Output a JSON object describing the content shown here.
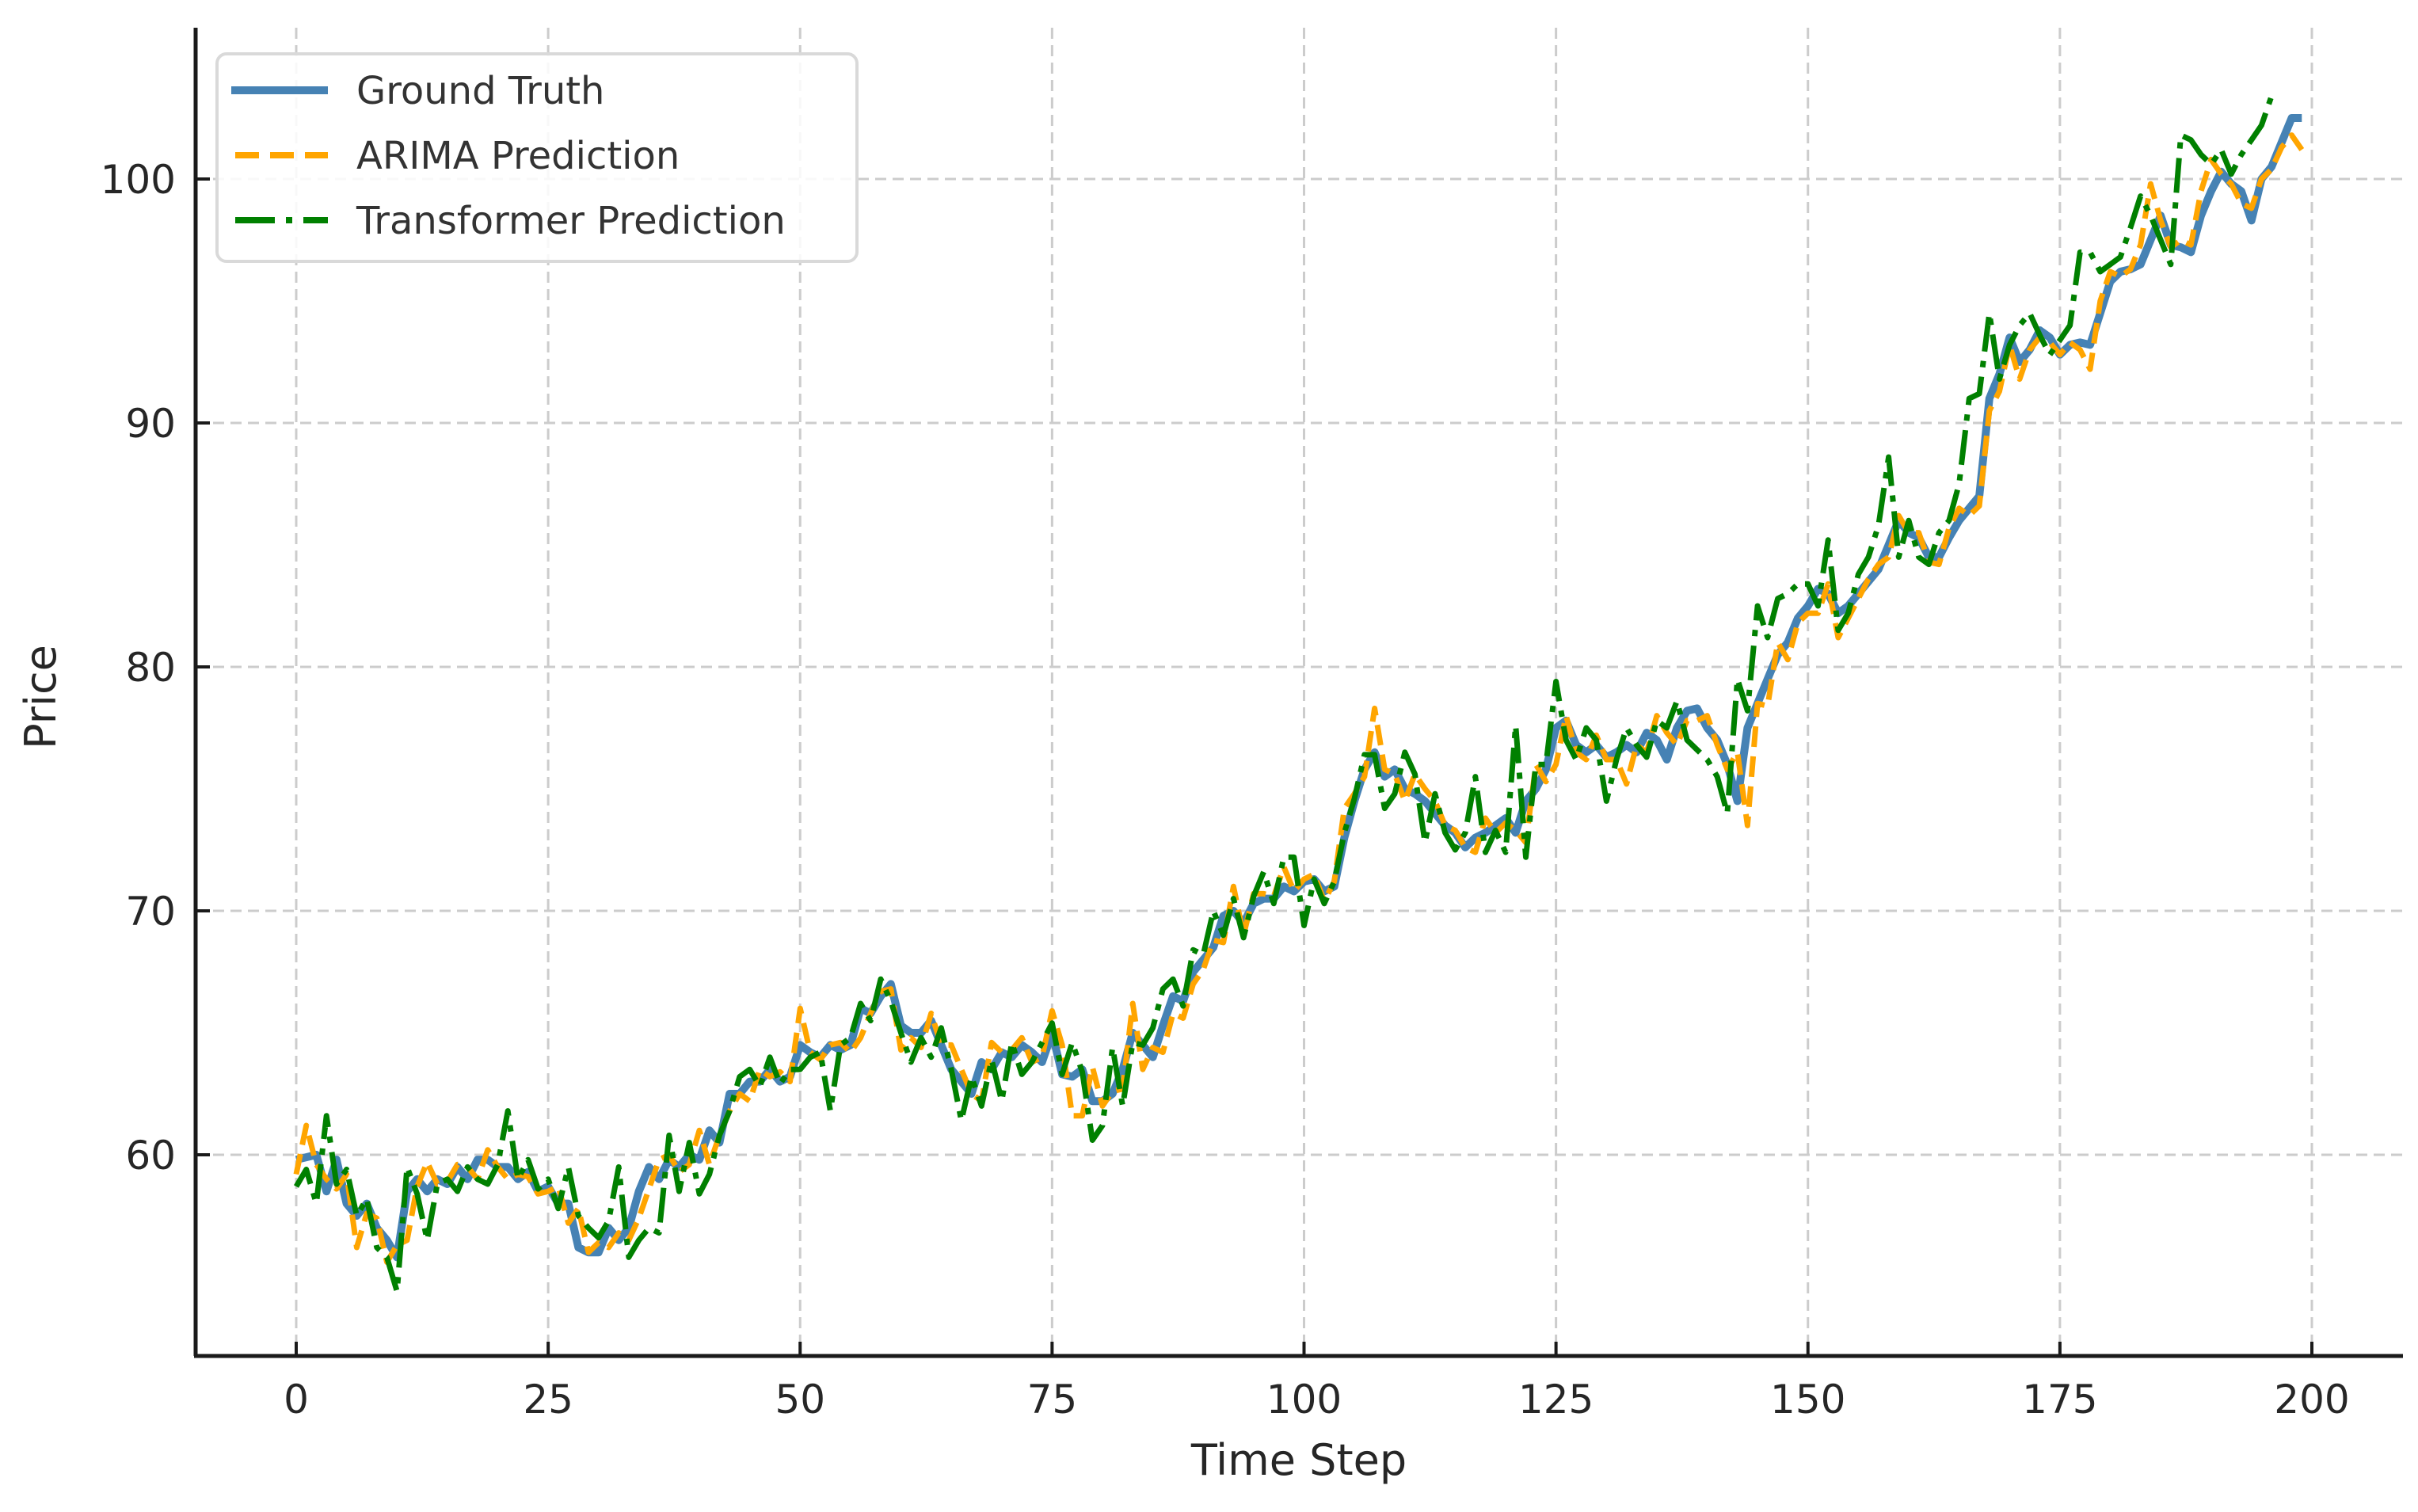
{
  "chart_data": {
    "type": "line",
    "title": "",
    "xlabel": "Time Step",
    "ylabel": "Price",
    "xlim": [
      -10,
      210
    ],
    "ylim": [
      51.75,
      106.3
    ],
    "grid": true,
    "legend_position": "upper left",
    "x_ticks": [
      0,
      25,
      50,
      75,
      100,
      125,
      150,
      175,
      200
    ],
    "x_tick_labels": [
      "0",
      "25",
      "50",
      "75",
      "100",
      "125",
      "150",
      "175",
      "200"
    ],
    "y_ticks": [
      60,
      70,
      80,
      90,
      100
    ],
    "y_tick_labels": [
      "60",
      "70",
      "80",
      "90",
      "100"
    ],
    "x_start": 0,
    "x_step": 1,
    "series": [
      {
        "name": "Ground Truth",
        "color": "#4682b4",
        "style": "solid",
        "values": [
          59.8,
          59.9,
          60.0,
          58.5,
          59.8,
          58.0,
          57.5,
          58.0,
          57.0,
          56.5,
          55.8,
          58.5,
          59.0,
          58.5,
          59.0,
          58.8,
          59.5,
          59.0,
          59.8,
          59.8,
          59.5,
          59.5,
          59.0,
          59.3,
          58.5,
          58.7,
          58.0,
          58.0,
          56.2,
          56.0,
          56.0,
          57.0,
          56.5,
          57.0,
          58.5,
          59.5,
          59.0,
          59.8,
          59.5,
          60.0,
          59.8,
          61.0,
          60.5,
          62.5,
          62.5,
          63.0,
          63.0,
          63.5,
          63.0,
          63.2,
          64.5,
          64.2,
          64.0,
          64.5,
          64.3,
          64.5,
          66.0,
          65.8,
          66.5,
          67.0,
          65.3,
          65.0,
          65.0,
          65.5,
          64.5,
          63.5,
          63.0,
          62.5,
          63.8,
          63.5,
          64.2,
          64.0,
          64.5,
          64.2,
          63.8,
          65.0,
          63.3,
          63.2,
          63.5,
          62.2,
          62.2,
          62.5,
          63.5,
          65.0,
          64.5,
          64.0,
          65.3,
          66.5,
          66.3,
          67.5,
          68.0,
          68.5,
          69.8,
          70.0,
          69.5,
          70.3,
          70.5,
          70.5,
          71.0,
          70.8,
          71.2,
          71.3,
          70.8,
          71.0,
          73.0,
          74.5,
          75.8,
          76.5,
          75.5,
          75.8,
          75.0,
          74.8,
          74.5,
          74.0,
          73.5,
          73.2,
          72.6,
          73.0,
          73.2,
          73.5,
          73.8,
          73.2,
          74.5,
          75.0,
          75.8,
          77.5,
          77.8,
          76.8,
          76.5,
          76.8,
          76.3,
          76.5,
          76.8,
          76.5,
          77.3,
          77.0,
          76.2,
          77.5,
          78.2,
          78.3,
          77.5,
          77.0,
          76.0,
          74.5,
          77.5,
          78.5,
          79.5,
          80.5,
          81.0,
          82.0,
          82.5,
          83.2,
          83.0,
          82.2,
          82.5,
          83.0,
          83.5,
          84.0,
          85.0,
          86.0,
          85.5,
          85.3,
          84.5,
          84.5,
          85.3,
          86.0,
          86.5,
          87.0,
          91.0,
          92.0,
          93.5,
          92.5,
          93.0,
          93.8,
          93.5,
          92.8,
          93.2,
          93.3,
          93.2,
          94.5,
          95.8,
          96.2,
          96.3,
          96.5,
          97.5,
          98.5,
          97.3,
          97.2,
          97.0,
          98.5,
          99.5,
          100.3,
          99.8,
          99.5,
          98.3,
          100.0,
          100.5,
          101.5,
          102.5,
          102.5
        ]
      },
      {
        "name": "ARIMA Prediction",
        "color": "#ffa500",
        "style": "dashed",
        "values": [
          59.2,
          61.2,
          59.6,
          59.0,
          58.6,
          59.2,
          56.2,
          57.6,
          57.4,
          55.6,
          56.3,
          56.5,
          58.7,
          59.7,
          58.8,
          58.9,
          59.6,
          59.5,
          59.0,
          60.2,
          59.5,
          59.0,
          59.2,
          59.1,
          58.4,
          58.5,
          58.7,
          57.2,
          57.8,
          56.0,
          56.4,
          56.2,
          56.8,
          56.5,
          57.4,
          58.6,
          59.8,
          60.0,
          59.3,
          59.6,
          61.0,
          59.6,
          60.8,
          61.8,
          62.5,
          62.2,
          63.5,
          63.2,
          63.4,
          63.0,
          66.0,
          64.2,
          63.9,
          64.5,
          64.6,
          64.2,
          64.8,
          65.8,
          66.7,
          66.8,
          64.3,
          64.8,
          64.4,
          65.8,
          64.5,
          64.5,
          63.5,
          62.5,
          62.2,
          64.6,
          64.2,
          64.3,
          64.8,
          63.8,
          64.0,
          65.9,
          64.5,
          61.6,
          61.6,
          63.6,
          62.0,
          62.6,
          62.7,
          66.2,
          63.5,
          64.4,
          64.2,
          65.8,
          65.6,
          67.0,
          67.6,
          68.8,
          68.7,
          71.0,
          69.0,
          70.7,
          70.7,
          70.6,
          71.8,
          70.8,
          71.3,
          71.5,
          70.4,
          71.2,
          74.2,
          74.8,
          75.5,
          78.3,
          75.8,
          75.6,
          74.5,
          75.6,
          75.0,
          74.5,
          73.5,
          73.3,
          72.6,
          72.4,
          73.8,
          73.2,
          73.6,
          73.3,
          72.8,
          76.0,
          75.3,
          76.0,
          78.0,
          76.5,
          76.2,
          77.2,
          76.2,
          76.2,
          75.2,
          76.8,
          76.5,
          78.0,
          77.3,
          76.8,
          77.8,
          77.8,
          78.0,
          76.8,
          75.8,
          76.5,
          73.5,
          78.5,
          78.4,
          81.0,
          80.3,
          81.8,
          82.2,
          82.2,
          83.4,
          81.2,
          82.0,
          82.8,
          83.6,
          84.2,
          84.5,
          86.2,
          85.5,
          85.5,
          84.3,
          84.2,
          85.7,
          86.5,
          86.2,
          86.6,
          90.5,
          91.3,
          93.2,
          91.8,
          93.0,
          93.5,
          93.3,
          92.8,
          93.3,
          93.0,
          92.2,
          95.0,
          96.2,
          96.0,
          96.3,
          97.3,
          99.8,
          98.3,
          97.2,
          97.5,
          97.3,
          99.5,
          100.8,
          100.2,
          99.8,
          99.0,
          98.8,
          100.0,
          100.4,
          101.3,
          101.8,
          101.2
        ]
      },
      {
        "name": "Transformer Prediction",
        "color": "#008000",
        "style": "dashdot",
        "values": [
          58.7,
          59.4,
          58.0,
          61.6,
          58.8,
          59.4,
          57.5,
          58.2,
          56.2,
          55.8,
          54.4,
          59.5,
          58.4,
          56.5,
          58.8,
          59.0,
          58.5,
          59.5,
          59.0,
          58.8,
          59.6,
          61.8,
          59.0,
          59.8,
          58.6,
          59.0,
          57.8,
          59.5,
          57.5,
          57.0,
          56.6,
          57.3,
          59.5,
          55.8,
          56.5,
          57.0,
          56.8,
          60.8,
          58.5,
          60.5,
          58.4,
          59.2,
          60.8,
          61.8,
          63.2,
          63.5,
          62.8,
          64.0,
          62.9,
          63.5,
          63.5,
          64.0,
          64.2,
          61.8,
          64.5,
          64.8,
          66.2,
          65.5,
          67.2,
          66.3,
          65.0,
          63.8,
          64.8,
          64.0,
          65.2,
          63.5,
          61.4,
          63.2,
          62.0,
          63.9,
          62.2,
          64.6,
          63.3,
          63.8,
          64.6,
          65.4,
          63.3,
          64.6,
          63.4,
          60.6,
          61.2,
          64.4,
          62.0,
          64.6,
          64.5,
          65.2,
          66.8,
          67.2,
          66.1,
          68.4,
          68.2,
          70.0,
          69.0,
          70.5,
          68.9,
          70.6,
          71.6,
          70.3,
          72.2,
          72.2,
          69.4,
          71.3,
          70.3,
          71.2,
          73.2,
          74.6,
          76.4,
          76.4,
          74.2,
          74.8,
          76.5,
          75.6,
          72.8,
          74.8,
          73.2,
          72.5,
          73.2,
          75.5,
          72.4,
          73.3,
          72.4,
          77.6,
          72.2,
          76.0,
          76.0,
          79.4,
          77.0,
          76.2,
          77.5,
          77.0,
          74.5,
          76.2,
          77.5,
          76.8,
          76.3,
          77.8,
          77.5,
          78.6,
          77.0,
          76.6,
          76.2,
          75.5,
          74.0,
          79.5,
          78.2,
          82.5,
          81.2,
          82.8,
          83.0,
          83.4,
          83.4,
          82.5,
          85.2,
          81.5,
          82.2,
          83.8,
          84.5,
          85.8,
          88.6,
          84.5,
          86.0,
          84.5,
          84.2,
          85.5,
          86.0,
          87.5,
          91.0,
          91.2,
          94.5,
          91.8,
          93.2,
          94.0,
          94.5,
          93.6,
          92.8,
          93.4,
          94.0,
          97.0,
          97.0,
          96.2,
          96.5,
          96.8,
          98.0,
          99.3,
          98.5,
          97.5,
          96.5,
          101.8,
          101.6,
          101.0,
          100.6,
          101.2,
          100.2,
          101.0,
          101.6,
          102.2,
          103.4
        ]
      }
    ]
  },
  "legend": {
    "items": [
      {
        "label": "Ground Truth",
        "color": "#4682b4",
        "style": "solid"
      },
      {
        "label": "ARIMA Prediction",
        "color": "#ffa500",
        "style": "dashed"
      },
      {
        "label": "Transformer Prediction",
        "color": "#008000",
        "style": "dashdot"
      }
    ]
  },
  "colors": {
    "axis": "#1a1a1a",
    "grid": "#cccccc",
    "legend_border": "#d9d9d9"
  }
}
